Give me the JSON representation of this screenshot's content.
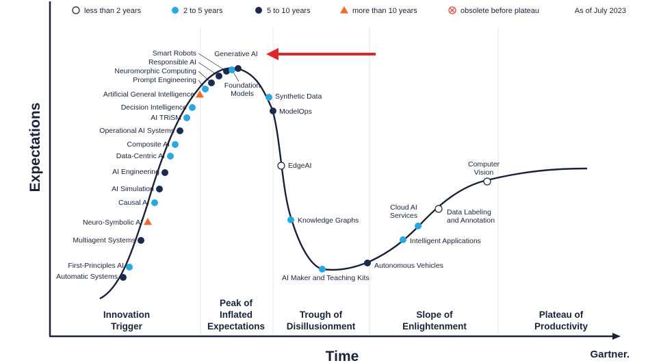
{
  "chart_data": {
    "type": "scatter",
    "xlabel": "Time",
    "ylabel": "Expectations",
    "as_of": "As of July 2023",
    "brand": "Gartner.",
    "legend": [
      {
        "key": "lt2",
        "label": "less than 2 years",
        "shape": "circle-open",
        "color": "#ffffff"
      },
      {
        "key": "2to5",
        "label": "2 to 5 years",
        "shape": "circle",
        "color": "#2aa7df"
      },
      {
        "key": "5to10",
        "label": "5 to 10 years",
        "shape": "circle",
        "color": "#1b2a4e"
      },
      {
        "key": "gt10",
        "label": "more than 10 years",
        "shape": "triangle",
        "color": "#ef6a2c"
      },
      {
        "key": "obsolete",
        "label": "obsolete before plateau",
        "shape": "circle-x",
        "color": "#e0483e"
      }
    ],
    "phases": [
      {
        "label": "Innovation Trigger",
        "lines": [
          "Innovation",
          "Trigger"
        ]
      },
      {
        "label": "Peak of Inflated Expectations",
        "lines": [
          "Peak of",
          "Inflated",
          "Expectations"
        ]
      },
      {
        "label": "Trough of Disillusionment",
        "lines": [
          "Trough of",
          "Disillusionment"
        ]
      },
      {
        "label": "Slope of Enlightenment",
        "lines": [
          "Slope of",
          "Enlightenment"
        ]
      },
      {
        "label": "Plateau of Productivity",
        "lines": [
          "Plateau of",
          "Productivity"
        ]
      }
    ],
    "points": [
      {
        "name": "Automatic Systems",
        "lines": [
          "Automatic Systems"
        ],
        "cat": "5to10"
      },
      {
        "name": "First-Principles AI",
        "lines": [
          "First-Principles AI"
        ],
        "cat": "2to5"
      },
      {
        "name": "Multiagent Systems",
        "lines": [
          "Multiagent Systems"
        ],
        "cat": "5to10"
      },
      {
        "name": "Neuro-Symbolic AI",
        "lines": [
          "Neuro-Symbolic AI"
        ],
        "cat": "gt10"
      },
      {
        "name": "Causal AI",
        "lines": [
          "Causal AI"
        ],
        "cat": "2to5"
      },
      {
        "name": "AI Simulation",
        "lines": [
          "AI Simulation"
        ],
        "cat": "5to10"
      },
      {
        "name": "AI Engineering",
        "lines": [
          "AI Engineering"
        ],
        "cat": "5to10"
      },
      {
        "name": "Data-Centric AI",
        "lines": [
          "Data-Centric AI"
        ],
        "cat": "2to5"
      },
      {
        "name": "Composite AI",
        "lines": [
          "Composite AI"
        ],
        "cat": "2to5"
      },
      {
        "name": "Operational AI Systems",
        "lines": [
          "Operational AI Systems"
        ],
        "cat": "5to10"
      },
      {
        "name": "AI TRiSM",
        "lines": [
          "AI TRiSM"
        ],
        "cat": "2to5"
      },
      {
        "name": "Decision Intelligence",
        "lines": [
          "Decision Intelligence"
        ],
        "cat": "2to5"
      },
      {
        "name": "Artificial General Intelligence",
        "lines": [
          "Artificial General Intelligence"
        ],
        "cat": "gt10"
      },
      {
        "name": "Prompt Engineering",
        "lines": [
          "Prompt Engineering"
        ],
        "cat": "2to5"
      },
      {
        "name": "Neuromorphic Computing",
        "lines": [
          "Neuromorphic Computing"
        ],
        "cat": "5to10"
      },
      {
        "name": "Responsible AI",
        "lines": [
          "Responsible AI"
        ],
        "cat": "5to10"
      },
      {
        "name": "Smart Robots",
        "lines": [
          "Smart Robots"
        ],
        "cat": "5to10"
      },
      {
        "name": "Foundation Models",
        "lines": [
          "Foundation",
          "Models"
        ],
        "cat": "2to5"
      },
      {
        "name": "Generative AI",
        "lines": [
          "Generative AI"
        ],
        "cat": "5to10"
      },
      {
        "name": "Synthetic Data",
        "lines": [
          "Synthetic Data"
        ],
        "cat": "2to5"
      },
      {
        "name": "ModelOps",
        "lines": [
          "ModelOps"
        ],
        "cat": "5to10"
      },
      {
        "name": "EdgeAI",
        "lines": [
          "EdgeAI"
        ],
        "cat": "lt2"
      },
      {
        "name": "Knowledge Graphs",
        "lines": [
          "Knowledge Graphs"
        ],
        "cat": "2to5"
      },
      {
        "name": "AI Maker and Teaching Kits",
        "lines": [
          "AI Maker and Teaching Kits"
        ],
        "cat": "2to5"
      },
      {
        "name": "Autonomous Vehicles",
        "lines": [
          "Autonomous Vehicles"
        ],
        "cat": "5to10"
      },
      {
        "name": "Intelligent Applications",
        "lines": [
          "Intelligent Applications"
        ],
        "cat": "2to5"
      },
      {
        "name": "Cloud AI Services",
        "lines": [
          "Cloud AI",
          "Services"
        ],
        "cat": "2to5"
      },
      {
        "name": "Data Labeling and Annotation",
        "lines": [
          "Data Labeling",
          "and Annotation"
        ],
        "cat": "lt2"
      },
      {
        "name": "Computer Vision",
        "lines": [
          "Computer",
          "Vision"
        ],
        "cat": "lt2"
      }
    ]
  }
}
